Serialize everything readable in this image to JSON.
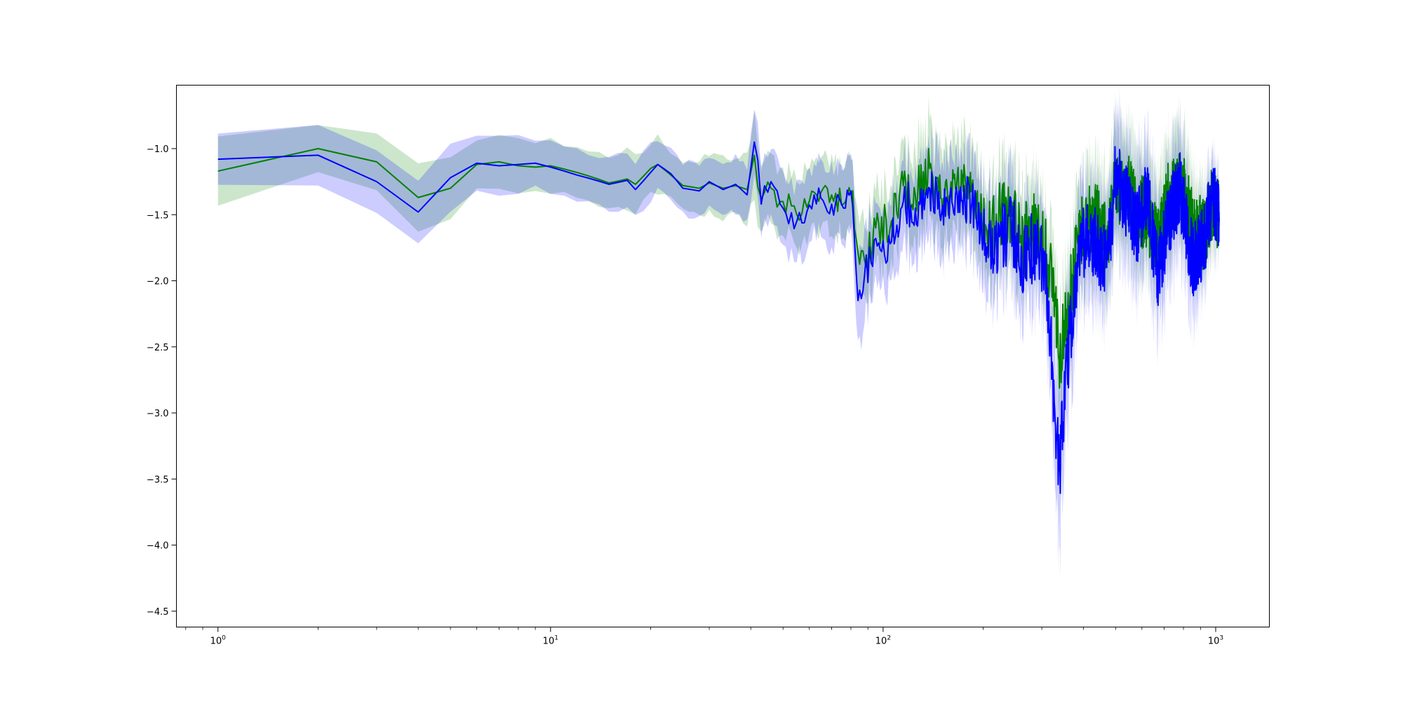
{
  "chart_data": {
    "type": "line",
    "title": "",
    "xlabel": "",
    "ylabel": "",
    "xscale": "log",
    "xlim": [
      0.75,
      1450
    ],
    "ylim": [
      -4.62,
      -0.52
    ],
    "grid": false,
    "legend": "none",
    "x_ticks": [
      {
        "value": 1,
        "base": "10",
        "exp": "0"
      },
      {
        "value": 10,
        "base": "10",
        "exp": "1"
      },
      {
        "value": 100,
        "base": "10",
        "exp": "2"
      },
      {
        "value": 1000,
        "base": "10",
        "exp": "3"
      }
    ],
    "y_ticks": [
      {
        "value": -1.0,
        "label": "−1.0"
      },
      {
        "value": -1.5,
        "label": "−1.5"
      },
      {
        "value": -2.0,
        "label": "−2.0"
      },
      {
        "value": -2.5,
        "label": "−2.5"
      },
      {
        "value": -3.0,
        "label": "−3.0"
      },
      {
        "value": -3.5,
        "label": "−3.5"
      },
      {
        "value": -4.0,
        "label": "−4.0"
      },
      {
        "value": -4.5,
        "label": "−4.5"
      }
    ],
    "series": [
      {
        "color": "#008000",
        "band_color": "#008000",
        "band_opacity": 0.2,
        "points": [
          [
            1,
            -1.17,
            0.24
          ],
          [
            2,
            -1.0,
            0.18
          ],
          [
            3,
            -1.1,
            0.2
          ],
          [
            4,
            -1.37,
            0.25
          ],
          [
            5,
            -1.3,
            0.27
          ],
          [
            6,
            -1.12,
            0.21
          ],
          [
            7,
            -1.1,
            0.2
          ],
          [
            8,
            -1.13,
            0.2
          ],
          [
            9,
            -1.14,
            0.2
          ],
          [
            10,
            -1.13,
            0.19
          ],
          [
            12,
            -1.18,
            0.18
          ],
          [
            15,
            -1.26,
            0.2
          ],
          [
            17,
            -1.23,
            0.22
          ],
          [
            18,
            -1.27,
            0.21
          ],
          [
            20,
            -1.15,
            0.2
          ],
          [
            21,
            -1.12,
            0.2
          ],
          [
            23,
            -1.2,
            0.19
          ],
          [
            25,
            -1.28,
            0.2
          ],
          [
            28,
            -1.3,
            0.22
          ],
          [
            30,
            -1.26,
            0.22
          ],
          [
            33,
            -1.3,
            0.22
          ],
          [
            36,
            -1.28,
            0.23
          ],
          [
            39,
            -1.31,
            0.25
          ],
          [
            41,
            -1.05,
            0.3
          ],
          [
            43,
            -1.38,
            0.26
          ],
          [
            46,
            -1.3,
            0.25
          ],
          [
            50,
            -1.4,
            0.25
          ],
          [
            55,
            -1.5,
            0.25
          ],
          [
            62,
            -1.33,
            0.25
          ],
          [
            70,
            -1.35,
            0.28
          ],
          [
            76,
            -1.42,
            0.27
          ],
          [
            80,
            -1.35,
            0.26
          ],
          [
            84,
            -1.78,
            0.3
          ],
          [
            88,
            -1.85,
            0.3
          ],
          [
            95,
            -1.6,
            0.28
          ],
          [
            105,
            -1.6,
            0.3
          ],
          [
            115,
            -1.28,
            0.3
          ],
          [
            125,
            -1.35,
            0.32
          ],
          [
            138,
            -1.15,
            0.35
          ],
          [
            150,
            -1.38,
            0.35
          ],
          [
            165,
            -1.3,
            0.33
          ],
          [
            185,
            -1.3,
            0.35
          ],
          [
            205,
            -1.62,
            0.35
          ],
          [
            225,
            -1.5,
            0.35
          ],
          [
            245,
            -1.5,
            0.38
          ],
          [
            265,
            -1.7,
            0.35
          ],
          [
            290,
            -1.55,
            0.38
          ],
          [
            310,
            -1.8,
            0.35
          ],
          [
            330,
            -2.15,
            0.35
          ],
          [
            340,
            -2.6,
            0.4
          ],
          [
            350,
            -2.3,
            0.4
          ],
          [
            365,
            -2.1,
            0.4
          ],
          [
            385,
            -1.72,
            0.4
          ],
          [
            410,
            -1.55,
            0.4
          ],
          [
            440,
            -1.5,
            0.42
          ],
          [
            470,
            -1.72,
            0.4
          ],
          [
            500,
            -1.3,
            0.42
          ],
          [
            540,
            -1.28,
            0.42
          ],
          [
            580,
            -1.45,
            0.42
          ],
          [
            620,
            -1.5,
            0.42
          ],
          [
            670,
            -1.75,
            0.42
          ],
          [
            720,
            -1.38,
            0.42
          ],
          [
            780,
            -1.22,
            0.42
          ],
          [
            850,
            -1.6,
            0.4
          ],
          [
            920,
            -1.65,
            0.3
          ],
          [
            980,
            -1.4,
            0.25
          ],
          [
            1024,
            -1.52,
            0.2
          ]
        ]
      },
      {
        "color": "#0000ff",
        "band_color": "#0000ff",
        "band_opacity": 0.2,
        "points": [
          [
            1,
            -1.08,
            0.22
          ],
          [
            2,
            -1.05,
            0.2
          ],
          [
            3,
            -1.25,
            0.22
          ],
          [
            4,
            -1.48,
            0.25
          ],
          [
            5,
            -1.22,
            0.3
          ],
          [
            6,
            -1.11,
            0.2
          ],
          [
            7,
            -1.13,
            0.2
          ],
          [
            8,
            -1.12,
            0.2
          ],
          [
            9,
            -1.11,
            0.19
          ],
          [
            10,
            -1.14,
            0.19
          ],
          [
            12,
            -1.2,
            0.18
          ],
          [
            15,
            -1.27,
            0.2
          ],
          [
            17,
            -1.24,
            0.21
          ],
          [
            18,
            -1.31,
            0.21
          ],
          [
            20,
            -1.18,
            0.2
          ],
          [
            21,
            -1.12,
            0.2
          ],
          [
            23,
            -1.19,
            0.19
          ],
          [
            25,
            -1.3,
            0.2
          ],
          [
            28,
            -1.32,
            0.2
          ],
          [
            30,
            -1.25,
            0.2
          ],
          [
            33,
            -1.31,
            0.21
          ],
          [
            36,
            -1.27,
            0.21
          ],
          [
            39,
            -1.35,
            0.22
          ],
          [
            41,
            -0.95,
            0.28
          ],
          [
            43,
            -1.42,
            0.25
          ],
          [
            46,
            -1.25,
            0.25
          ],
          [
            50,
            -1.45,
            0.27
          ],
          [
            55,
            -1.55,
            0.28
          ],
          [
            62,
            -1.35,
            0.27
          ],
          [
            70,
            -1.42,
            0.3
          ],
          [
            76,
            -1.45,
            0.3
          ],
          [
            80,
            -1.32,
            0.3
          ],
          [
            84,
            -2.15,
            0.35
          ],
          [
            88,
            -1.95,
            0.33
          ],
          [
            95,
            -1.68,
            0.3
          ],
          [
            105,
            -1.72,
            0.3
          ],
          [
            115,
            -1.4,
            0.32
          ],
          [
            125,
            -1.45,
            0.33
          ],
          [
            138,
            -1.3,
            0.35
          ],
          [
            150,
            -1.48,
            0.35
          ],
          [
            165,
            -1.35,
            0.35
          ],
          [
            185,
            -1.4,
            0.35
          ],
          [
            205,
            -1.75,
            0.37
          ],
          [
            225,
            -1.65,
            0.37
          ],
          [
            245,
            -1.6,
            0.4
          ],
          [
            265,
            -1.85,
            0.37
          ],
          [
            290,
            -1.7,
            0.4
          ],
          [
            310,
            -2.0,
            0.38
          ],
          [
            330,
            -3.1,
            0.5
          ],
          [
            340,
            -3.4,
            0.6
          ],
          [
            350,
            -2.9,
            0.5
          ],
          [
            365,
            -2.4,
            0.45
          ],
          [
            385,
            -1.9,
            0.42
          ],
          [
            410,
            -1.6,
            0.42
          ],
          [
            440,
            -1.75,
            0.44
          ],
          [
            470,
            -1.9,
            0.42
          ],
          [
            500,
            -1.2,
            0.45
          ],
          [
            540,
            -1.4,
            0.45
          ],
          [
            580,
            -1.6,
            0.45
          ],
          [
            620,
            -1.35,
            0.45
          ],
          [
            670,
            -1.95,
            0.45
          ],
          [
            720,
            -1.55,
            0.45
          ],
          [
            780,
            -1.3,
            0.45
          ],
          [
            850,
            -1.85,
            0.42
          ],
          [
            920,
            -1.7,
            0.3
          ],
          [
            980,
            -1.35,
            0.28
          ],
          [
            1024,
            -1.55,
            0.22
          ]
        ]
      }
    ]
  }
}
